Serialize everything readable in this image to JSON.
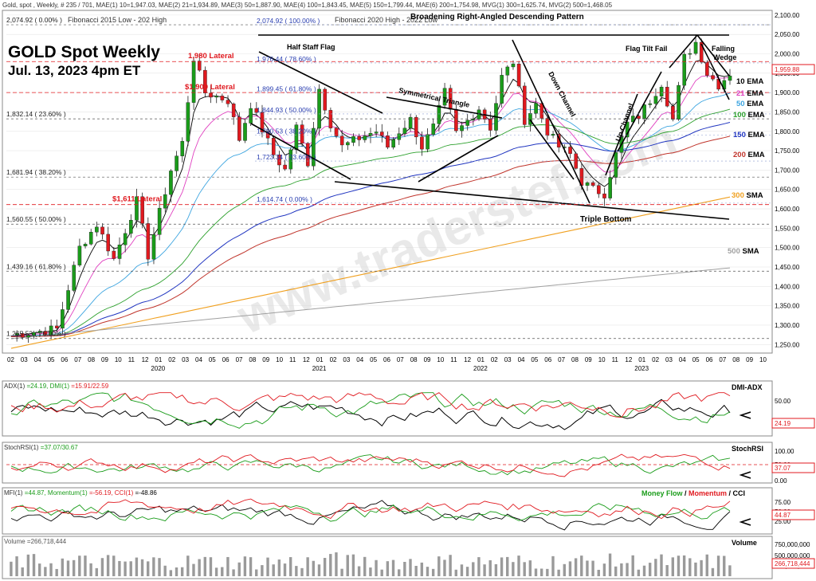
{
  "header": {
    "text": "Gold, spot , Weekly, # 235 / 701, MAE(1) 10=1,947.03, MAE(2) 21=1,934.89, MAE(3) 50=1,887.90, MAE(4) 100=1,843.45, MAE(5) 150=1,799.44, MAE(6) 200=1,754.98, MVG(1) 300=1,625.74, MVG(2) 500=1,468.05"
  },
  "title": {
    "line1": "GOLD Spot Weekly",
    "line2": "Jul. 13, 2023 4pm ET",
    "watermark": "www.traderstef.com"
  },
  "colors": {
    "up": "#1a9c1a",
    "down": "#e0191f",
    "ema10": "#000000",
    "ema21": "#e040c0",
    "ema50": "#3da5e0",
    "ema100": "#2ca02c",
    "ema150": "#2035c0",
    "ema200": "#c0342b",
    "sma300": "#f0a020",
    "sma500": "#a0a0a0",
    "fib": "#2a3fb0",
    "lateral": "#e0191f"
  },
  "chart_data": [
    {
      "type": "candlestick",
      "name": "main",
      "ylim": [
        1230,
        2110
      ],
      "yticks": [
        1250,
        1300,
        1350,
        1400,
        1450,
        1500,
        1550,
        1600,
        1650,
        1700,
        1750,
        1800,
        1850,
        1900,
        1950,
        2000,
        2050,
        2100
      ],
      "ytick_labels": [
        "1,250.00",
        "1,300.00",
        "1,350.00",
        "1,400.00",
        "1,450.00",
        "1,500.00",
        "1,550.00",
        "1,600.00",
        "1,650.00",
        "1,700.00",
        "1,750.00",
        "1,800.00",
        "1,850.00",
        "1,900.00",
        "1,950.00",
        "2,000.00",
        "2,050.00",
        "2,100.00"
      ],
      "price_tag": {
        "value": 1959.88,
        "label": "1,959.88"
      },
      "months": [
        "02",
        "03",
        "04",
        "05",
        "06",
        "07",
        "08",
        "09",
        "10",
        "11",
        "12",
        "01",
        "02",
        "03",
        "04",
        "05",
        "06",
        "07",
        "08",
        "09",
        "10",
        "11",
        "12",
        "01",
        "02",
        "03",
        "04",
        "05",
        "06",
        "07",
        "08",
        "09",
        "10",
        "11",
        "12",
        "01",
        "02",
        "03",
        "04",
        "05",
        "06",
        "07",
        "08",
        "09",
        "10",
        "11",
        "12",
        "01",
        "02",
        "03",
        "04",
        "05",
        "06",
        "07",
        "08",
        "09",
        "10"
      ],
      "years": [
        {
          "label": "2020",
          "month_index": 11
        },
        {
          "label": "2021",
          "month_index": 23
        },
        {
          "label": "2022",
          "month_index": 35
        },
        {
          "label": "2023",
          "month_index": 47
        }
      ],
      "anchors": [
        [
          0,
          1275
        ],
        [
          8,
          1290
        ],
        [
          12,
          1500
        ],
        [
          15,
          1560
        ],
        [
          18,
          1470
        ],
        [
          22,
          1620
        ],
        [
          24,
          1480
        ],
        [
          28,
          1700
        ],
        [
          30,
          1770
        ],
        [
          32,
          1990
        ],
        [
          34,
          1900
        ],
        [
          38,
          1880
        ],
        [
          40,
          1780
        ],
        [
          42,
          1870
        ],
        [
          46,
          1740
        ],
        [
          48,
          1700
        ],
        [
          50,
          1810
        ],
        [
          52,
          1720
        ],
        [
          54,
          1910
        ],
        [
          56,
          1820
        ],
        [
          58,
          1760
        ],
        [
          62,
          1790
        ],
        [
          64,
          1800
        ],
        [
          66,
          1760
        ],
        [
          68,
          1800
        ],
        [
          70,
          1830
        ],
        [
          72,
          1760
        ],
        [
          74,
          1810
        ],
        [
          76,
          1900
        ],
        [
          78,
          1795
        ],
        [
          82,
          1860
        ],
        [
          84,
          1810
        ],
        [
          86,
          1940
        ],
        [
          88,
          1980
        ],
        [
          90,
          1830
        ],
        [
          92,
          1870
        ],
        [
          94,
          1800
        ],
        [
          96,
          1760
        ],
        [
          98,
          1740
        ],
        [
          100,
          1670
        ],
        [
          102,
          1650
        ],
        [
          104,
          1640
        ],
        [
          106,
          1740
        ],
        [
          108,
          1820
        ],
        [
          110,
          1840
        ],
        [
          112,
          1880
        ],
        [
          114,
          1925
        ],
        [
          116,
          1830
        ],
        [
          118,
          1990
        ],
        [
          120,
          2030
        ],
        [
          122,
          1950
        ],
        [
          124,
          1920
        ],
        [
          126,
          1950
        ]
      ],
      "fib_left": [
        {
          "value": 2074.92,
          "label": "2,074.92 ( 0.00% )"
        },
        {
          "value": 1832.14,
          "label": "1,832.14 ( 23.60% )"
        },
        {
          "value": 1681.94,
          "label": "1,681.94 ( 38.20% )"
        },
        {
          "value": 1560.55,
          "label": "1,560.55 ( 50.00% )"
        },
        {
          "value": 1439.16,
          "label": "1,439.16 ( 61.80% )"
        },
        {
          "value": 1265.53,
          "label": "1,265.53 ( 76.00% )"
        }
      ],
      "fib_left_title": "Fibonacci 2015 Low - 202 High",
      "fib_right": [
        {
          "value": 2074.92,
          "label": "2,074.92 ( 100.00% )"
        },
        {
          "value": 1976.44,
          "label": "1,976.44 ( 78.60% )"
        },
        {
          "value": 1899.45,
          "label": "1,899.45 ( 61.80% )"
        },
        {
          "value": 1844.93,
          "label": "1,844.93 ( 50.00% )"
        },
        {
          "value": 1790.53,
          "label": "1,790.53 ( 38.20% )"
        },
        {
          "value": 1723.34,
          "label": "1,723.34 ( 23.60% )"
        },
        {
          "value": 1614.74,
          "label": "1,614.74 ( 0.00% )"
        }
      ],
      "fib_right_title": "Fibonacci 2020 High - 2022 Low",
      "laterals": [
        {
          "value": 1980,
          "label": "1,980 Lateral"
        },
        {
          "value": 1900,
          "label": "$1,900 Lateral"
        },
        {
          "value": 1611,
          "label": "$1,611 Lateral"
        }
      ],
      "pattern_labels": {
        "broadening": "Broadening Right-Angled Descending Pattern",
        "half_staff": "Half Staff Flag",
        "sym_triangle": "Symmetrical Triangle",
        "down_channel": "Down Channel",
        "up_channel": "Up Channel",
        "flag_tilt": "Flag Tilt Fail",
        "falling_wedge_1": "Falling",
        "falling_wedge_2": "Wedge",
        "triple_bottom": "Triple Bottom"
      },
      "ma_labels": [
        {
          "num": "10",
          "word": "EMA",
          "color": "#000000"
        },
        {
          "num": "21",
          "word": "EMA",
          "color": "#e040c0"
        },
        {
          "num": "50",
          "word": "EMA",
          "color": "#3da5e0"
        },
        {
          "num": "100",
          "word": "EMA",
          "color": "#2ca02c"
        },
        {
          "num": "150",
          "word": "EMA",
          "color": "#2035c0"
        },
        {
          "num": "200",
          "word": "EMA",
          "color": "#c0342b"
        },
        {
          "num": "300",
          "word": "SMA",
          "color": "#f0a020"
        },
        {
          "num": "500",
          "word": "SMA",
          "color": "#a0a0a0"
        }
      ]
    },
    {
      "type": "line",
      "name": "DMI-ADX",
      "legend": {
        "a": "ADX(1)",
        "b": "=24.19, DMI(1)",
        "c": "=15.91/22.59"
      },
      "ticks": [
        "50.00"
      ],
      "tag": "24.19"
    },
    {
      "type": "line",
      "name": "StochRSI",
      "legend": {
        "a": "StochRSI(1)",
        "b": "=37.07/30.67"
      },
      "ticks": [
        "100.00",
        "50.00",
        "0.00"
      ],
      "tag": "37.07"
    },
    {
      "type": "line",
      "name": "Money Flow / Momentum / CCI",
      "legend": {
        "a": "MFI(1)",
        "b": "=44.87, Momentum(1)",
        "c": "=-56.19, CCI(1)",
        "d": "=-48.86"
      },
      "title_parts": [
        "Money Flow",
        " / ",
        "Momentum",
        " / ",
        "CCI"
      ],
      "ticks": [
        "75.00",
        "50.00",
        "25.00"
      ],
      "tag": "44.87"
    },
    {
      "type": "bar",
      "name": "Volume",
      "legend": "Volume =266,718,444",
      "ticks": [
        "750,000,000",
        "500,000,000",
        "250,000,000"
      ],
      "tag": "266,718,444"
    }
  ]
}
